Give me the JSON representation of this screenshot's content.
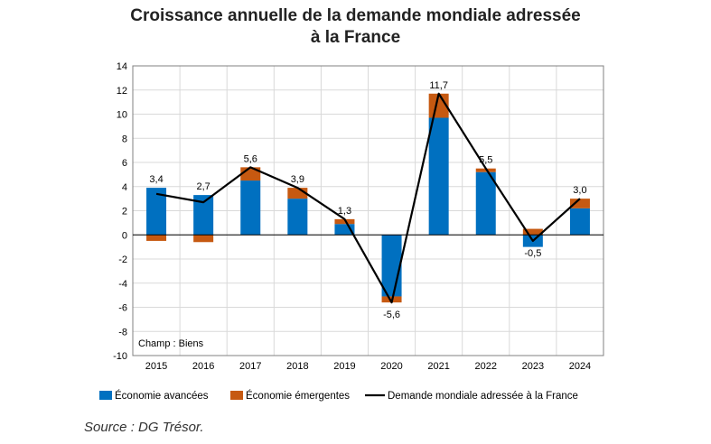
{
  "title_line1": "Croissance annuelle de la demande mondiale adressée",
  "title_line2": "à la France",
  "source": "Source : DG Trésor.",
  "colors": {
    "avancees": "#0070C0",
    "emergentes": "#C65911",
    "line": "#000000"
  },
  "chart_data": {
    "type": "bar",
    "stacked": true,
    "categories": [
      "2015",
      "2016",
      "2017",
      "2018",
      "2019",
      "2020",
      "2021",
      "2022",
      "2023",
      "2024"
    ],
    "series": [
      {
        "name": "Économie avancées",
        "values": [
          3.9,
          3.3,
          4.5,
          3.0,
          0.9,
          -5.1,
          9.7,
          5.2,
          -1.0,
          2.2
        ]
      },
      {
        "name": "Économie émergentes",
        "values": [
          -0.5,
          -0.6,
          1.1,
          0.9,
          0.4,
          -0.5,
          2.0,
          0.3,
          0.5,
          0.8
        ]
      }
    ],
    "line": {
      "name": "Demande mondiale adressée à la France",
      "values": [
        3.4,
        2.7,
        5.6,
        3.9,
        1.3,
        -5.6,
        11.7,
        5.5,
        -0.5,
        3.0
      ],
      "labels": [
        "3,4",
        "2,7",
        "5,6",
        "3,9",
        "1,3",
        "-5,6",
        "11,7",
        "5,5",
        "-0,5",
        "3,0"
      ]
    },
    "yticks": [
      "14",
      "12",
      "10",
      "8",
      "6",
      "4",
      "2",
      "0",
      "-2",
      "-4",
      "-6",
      "-8",
      "-10"
    ],
    "ylim": [
      -10,
      14
    ],
    "annotation": "Champ : Biens",
    "grid": true,
    "legend_position": "bottom"
  }
}
